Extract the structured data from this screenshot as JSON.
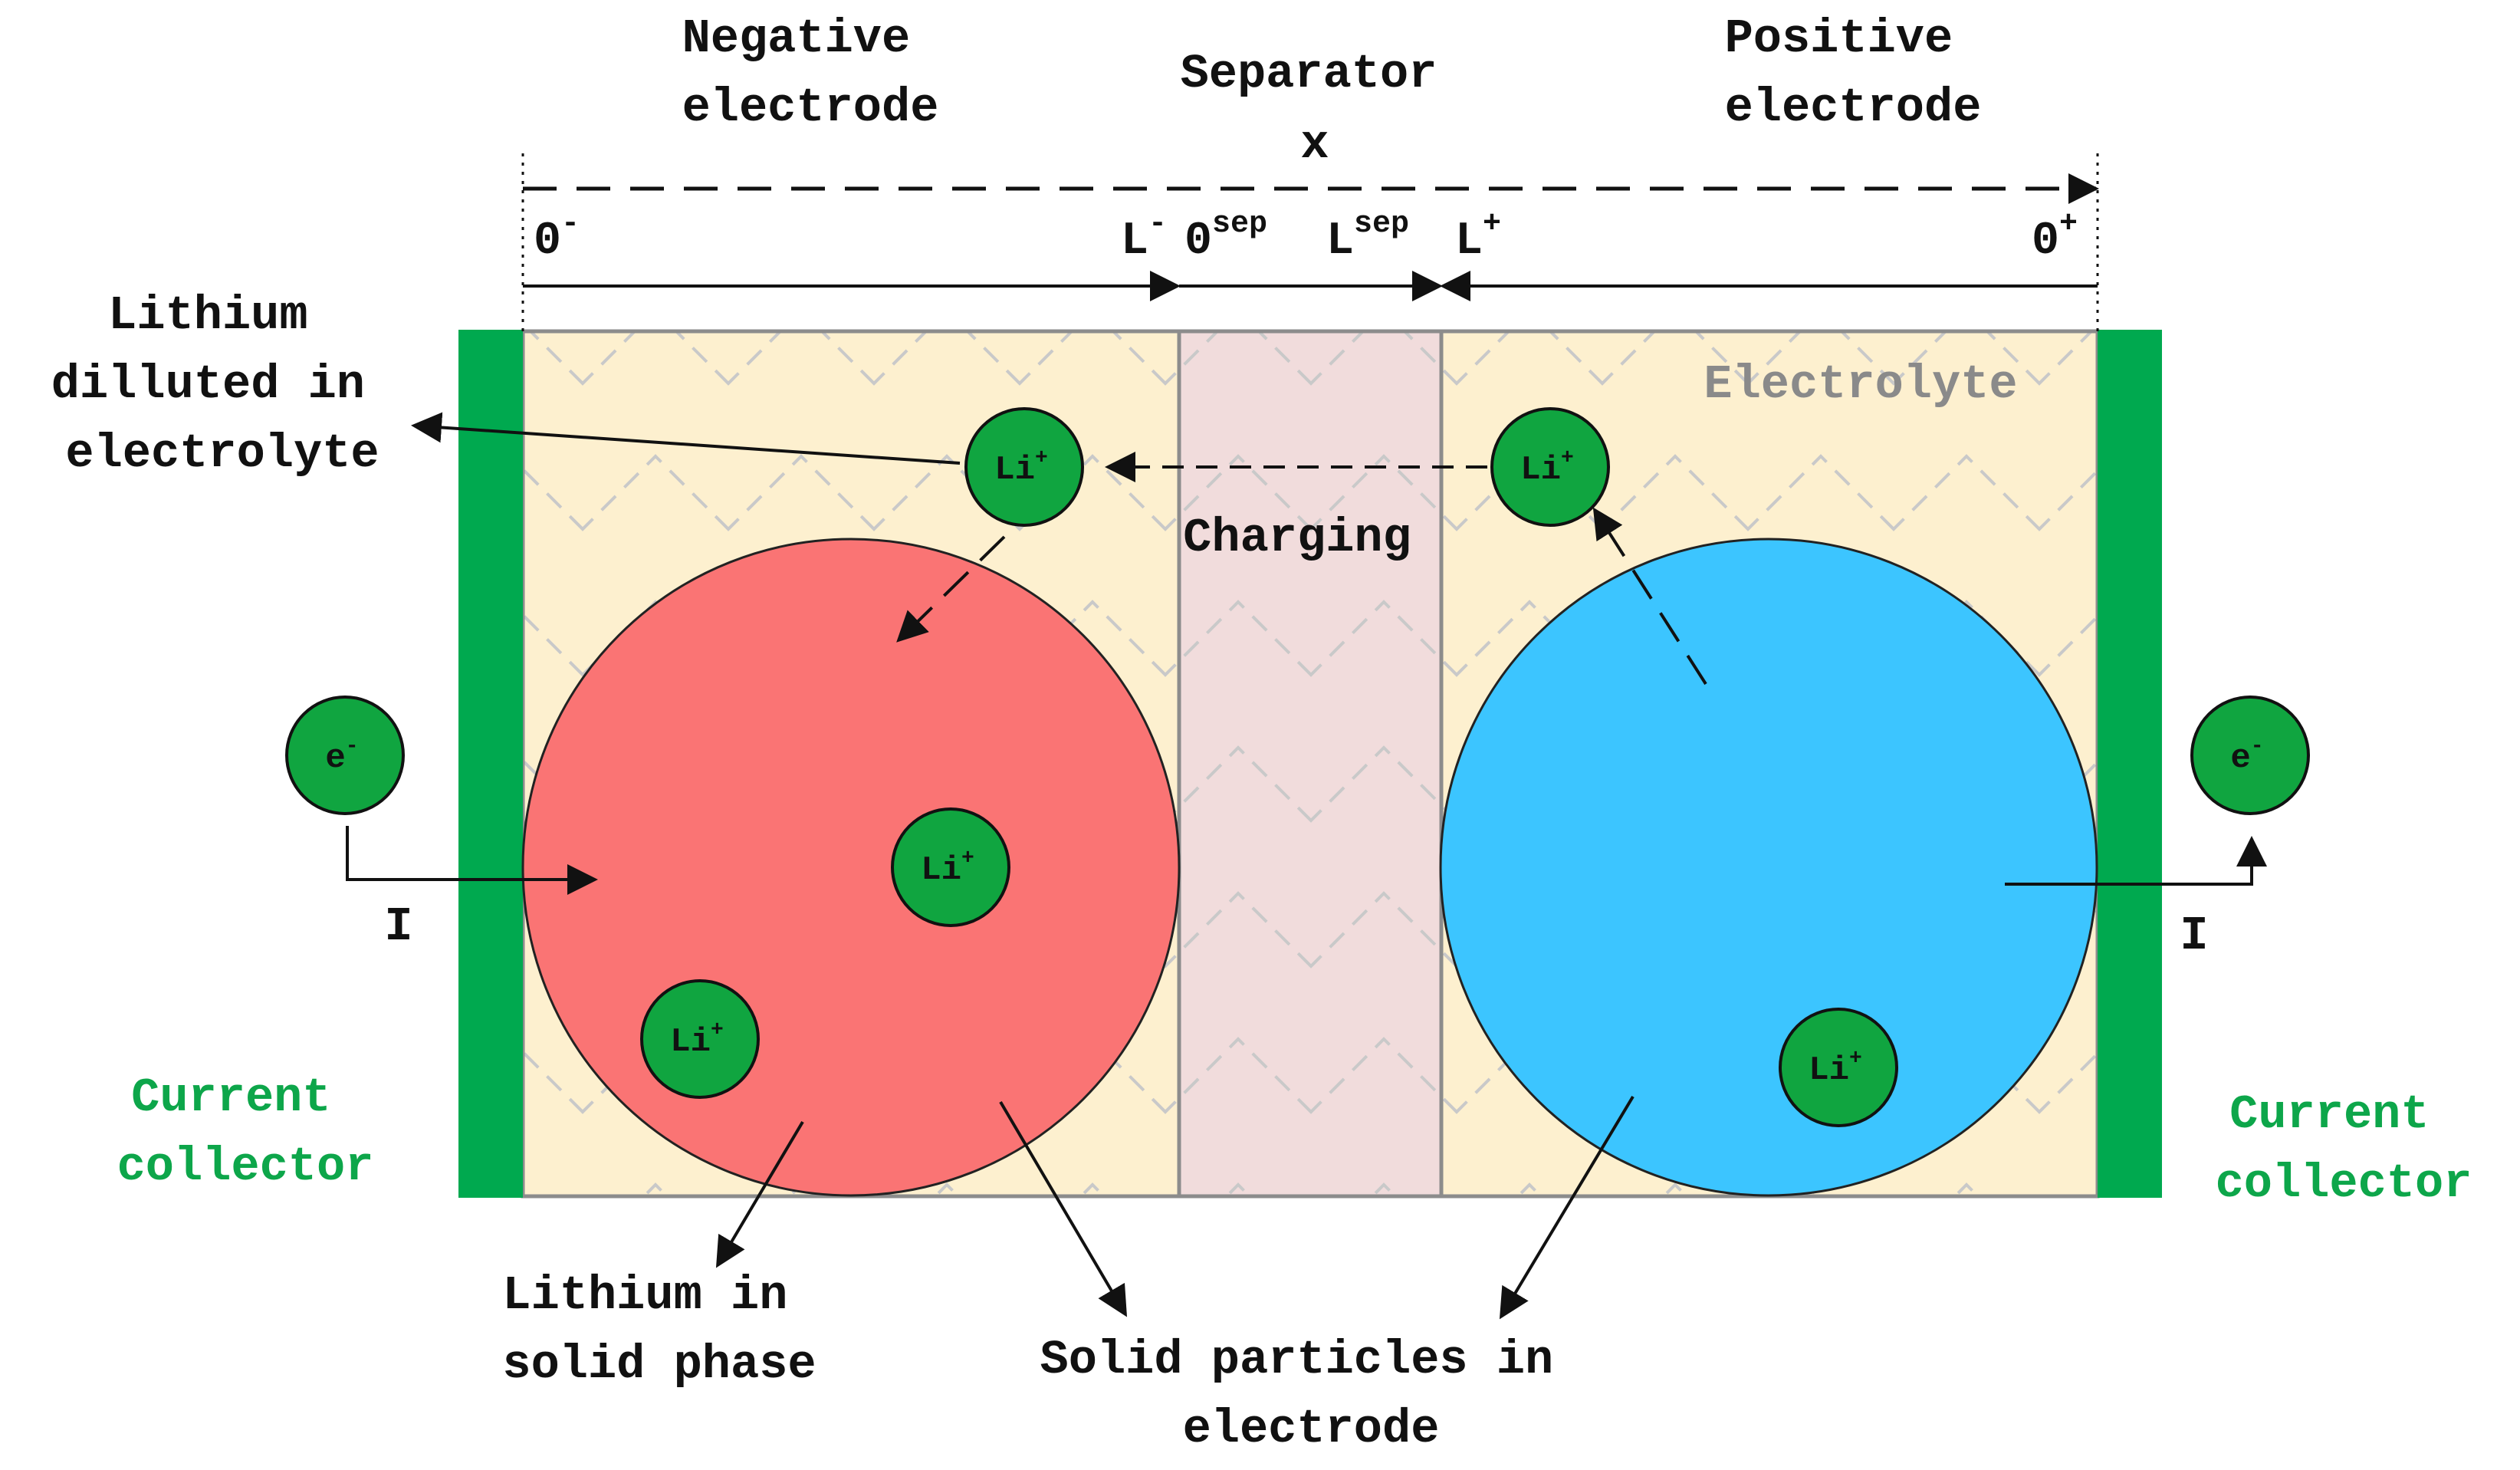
{
  "labels": {
    "negative_electrode": [
      "Negative",
      "electrode"
    ],
    "separator": "Separator",
    "positive_electrode": [
      "Positive",
      "electrode"
    ],
    "x_axis": "x",
    "lithium_diluted": [
      "Lithium",
      "dilluted in",
      "electrolyte"
    ],
    "electrolyte": "Electrolyte",
    "charging": "Charging",
    "current_collector_left": [
      "Current",
      "collector"
    ],
    "current_collector_right": [
      "Current",
      "collector"
    ],
    "lithium_solid": [
      "Lithium in",
      "solid phase"
    ],
    "solid_particles": [
      "Solid particles in",
      "electrode"
    ],
    "current_left": "I",
    "current_right": "I"
  },
  "axis_ticks": {
    "zero_minus": {
      "base": "0",
      "sup": "-"
    },
    "l_minus": {
      "base": "L",
      "sup": "-"
    },
    "zero_sep": {
      "base": "0",
      "sup": "sep"
    },
    "l_sep": {
      "base": "L",
      "sup": "sep"
    },
    "l_plus": {
      "base": "L",
      "sup": "+"
    },
    "zero_plus": {
      "base": "0",
      "sup": "+"
    }
  },
  "ions": {
    "lithium": {
      "base": "Li",
      "sup": "+"
    },
    "electron": {
      "base": "e",
      "sup": "-"
    }
  },
  "colors": {
    "collector": "#00a94f",
    "electrolyte_fill": "#fdf0cf",
    "separator_fill": "#f1dcdc",
    "negative_particle": "#fa7474",
    "positive_particle": "#3cc5ff",
    "ion_fill": "#10a540",
    "collector_text": "#0da64a"
  }
}
